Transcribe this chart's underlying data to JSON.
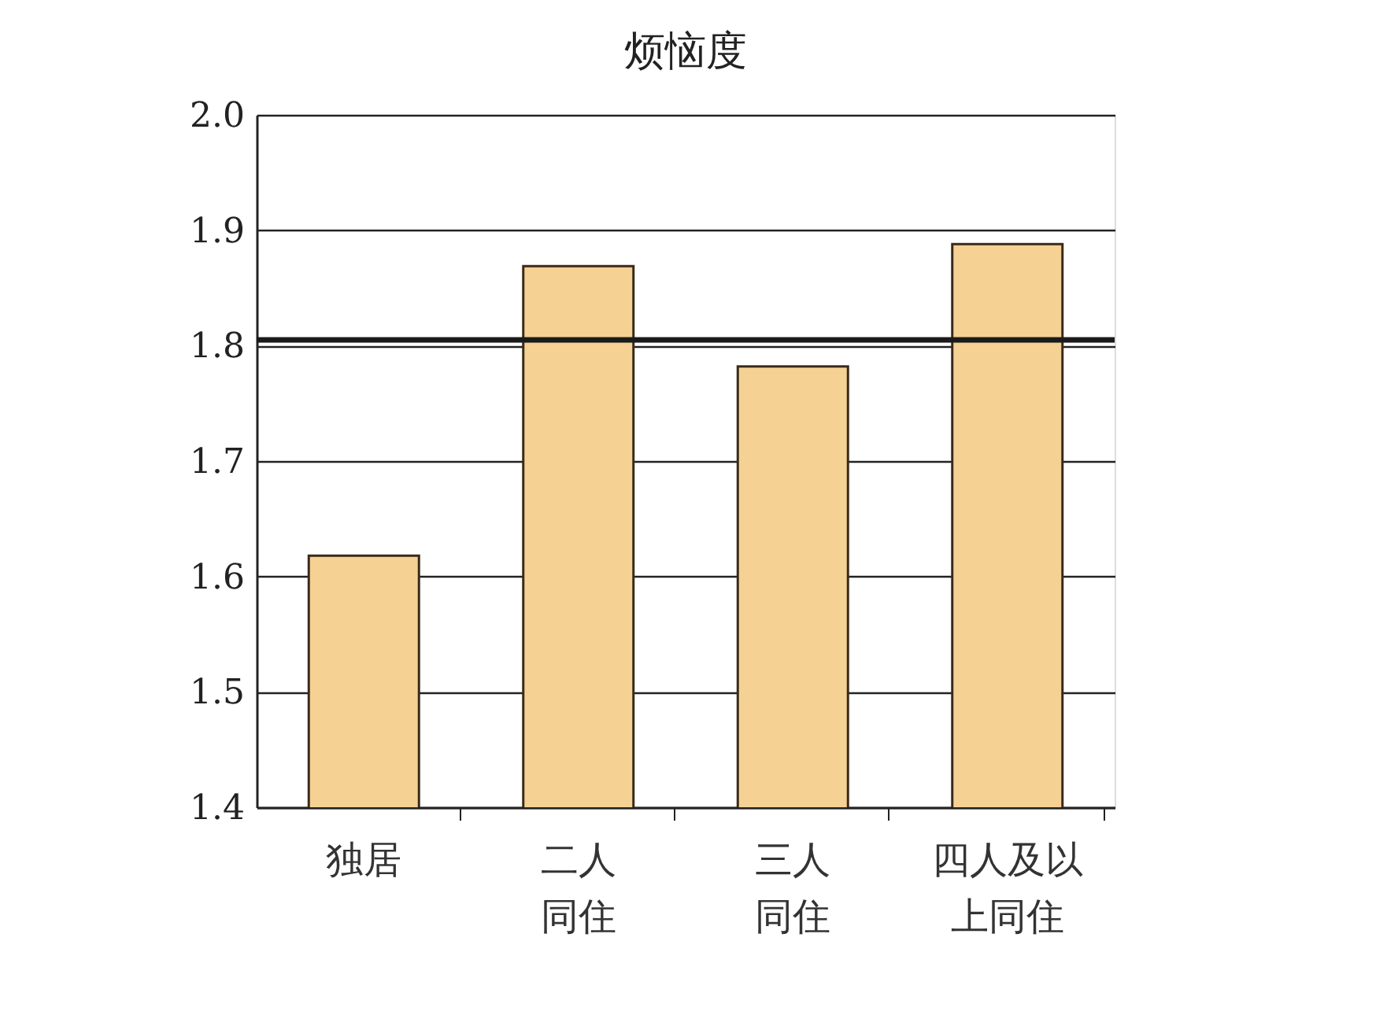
{
  "chart_data": {
    "type": "bar",
    "title": "烦恼度",
    "categories": [
      "独居",
      "二人同住",
      "三人同住",
      "四人及以上同住"
    ],
    "values": [
      1.618,
      1.869,
      1.782,
      1.888
    ],
    "color": "#f5d194",
    "ylim": [
      1.4,
      2.0
    ],
    "yticks": [
      1.4,
      1.5,
      1.6,
      1.7,
      1.8,
      1.9,
      {
        "value": 2.0,
        "label": "2.0"
      }
    ],
    "grid": "y",
    "ref_lines": [
      {
        "axis": "y",
        "value": 1.805,
        "color": "#1a1a1a"
      }
    ]
  }
}
